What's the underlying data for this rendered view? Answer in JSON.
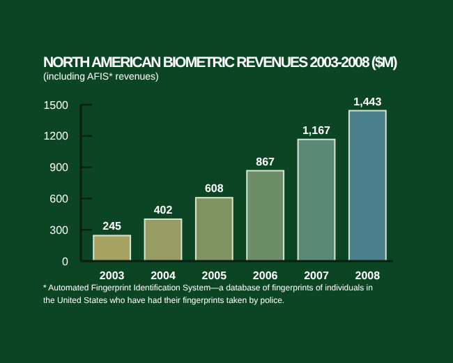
{
  "chart_data": {
    "type": "bar",
    "title": "NORTH AMERICAN BIOMETRIC REVENUES 2003-2008 ($M)",
    "subtitle": "(including AFIS* revenues)",
    "categories": [
      "2003",
      "2004",
      "2005",
      "2006",
      "2007",
      "2008"
    ],
    "values": [
      245,
      402,
      608,
      867,
      1167,
      1443
    ],
    "colors": [
      "#a6a262",
      "#979c62",
      "#809462",
      "#6c8d68",
      "#5b8877",
      "#4a7f8c"
    ],
    "value_labels": [
      "245",
      "402",
      "608",
      "867",
      "1,167",
      "1,443"
    ],
    "ylim": [
      0,
      1500
    ],
    "yticks": [
      0,
      300,
      600,
      900,
      1200,
      1500
    ],
    "grid": false,
    "annotations": [
      "* Automated Fingerprint Identification System—a database of fingerprints of individuals in the United States who have had their fingerprints taken by police."
    ]
  }
}
